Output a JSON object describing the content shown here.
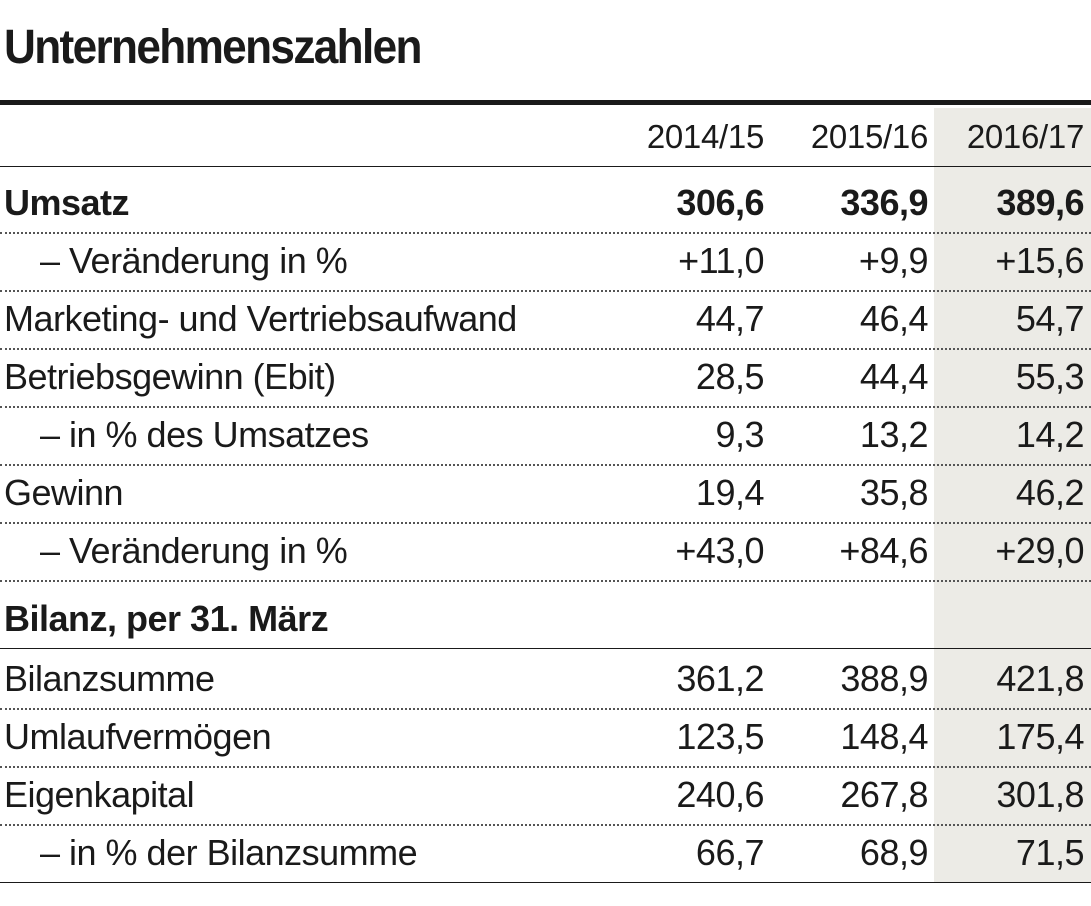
{
  "title": "Unternehmenszahlen",
  "columns": [
    "2014/15",
    "2015/16",
    "2016/17"
  ],
  "rows": [
    {
      "label": "Umsatz",
      "values": [
        "306,6",
        "336,9",
        "389,6"
      ]
    },
    {
      "label": "– Veränderung in %",
      "values": [
        "+11,0",
        "+9,9",
        "+15,6"
      ]
    },
    {
      "label": "Marketing- und Vertriebsaufwand",
      "values": [
        "44,7",
        "46,4",
        "54,7"
      ]
    },
    {
      "label": "Betriebsgewinn (Ebit)",
      "values": [
        "28,5",
        "44,4",
        "55,3"
      ]
    },
    {
      "label": "– in % des Umsatzes",
      "values": [
        "9,3",
        "13,2",
        "14,2"
      ]
    },
    {
      "label": "Gewinn",
      "values": [
        "19,4",
        "35,8",
        "46,2"
      ]
    },
    {
      "label": "– Veränderung in %",
      "values": [
        "+43,0",
        "+84,6",
        "+29,0"
      ]
    }
  ],
  "bilanz_heading": "Bilanz, per 31. März",
  "bilanz_rows": [
    {
      "label": "Bilanzsumme",
      "values": [
        "361,2",
        "388,9",
        "421,8"
      ]
    },
    {
      "label": "Umlaufvermögen",
      "values": [
        "123,5",
        "148,4",
        "175,4"
      ]
    },
    {
      "label": "Eigenkapital",
      "values": [
        "240,6",
        "267,8",
        "301,8"
      ]
    },
    {
      "label": "– in % der Bilanzsumme",
      "values": [
        "66,7",
        "68,9",
        "71,5"
      ]
    }
  ],
  "highlight_color": "#ecebe6"
}
